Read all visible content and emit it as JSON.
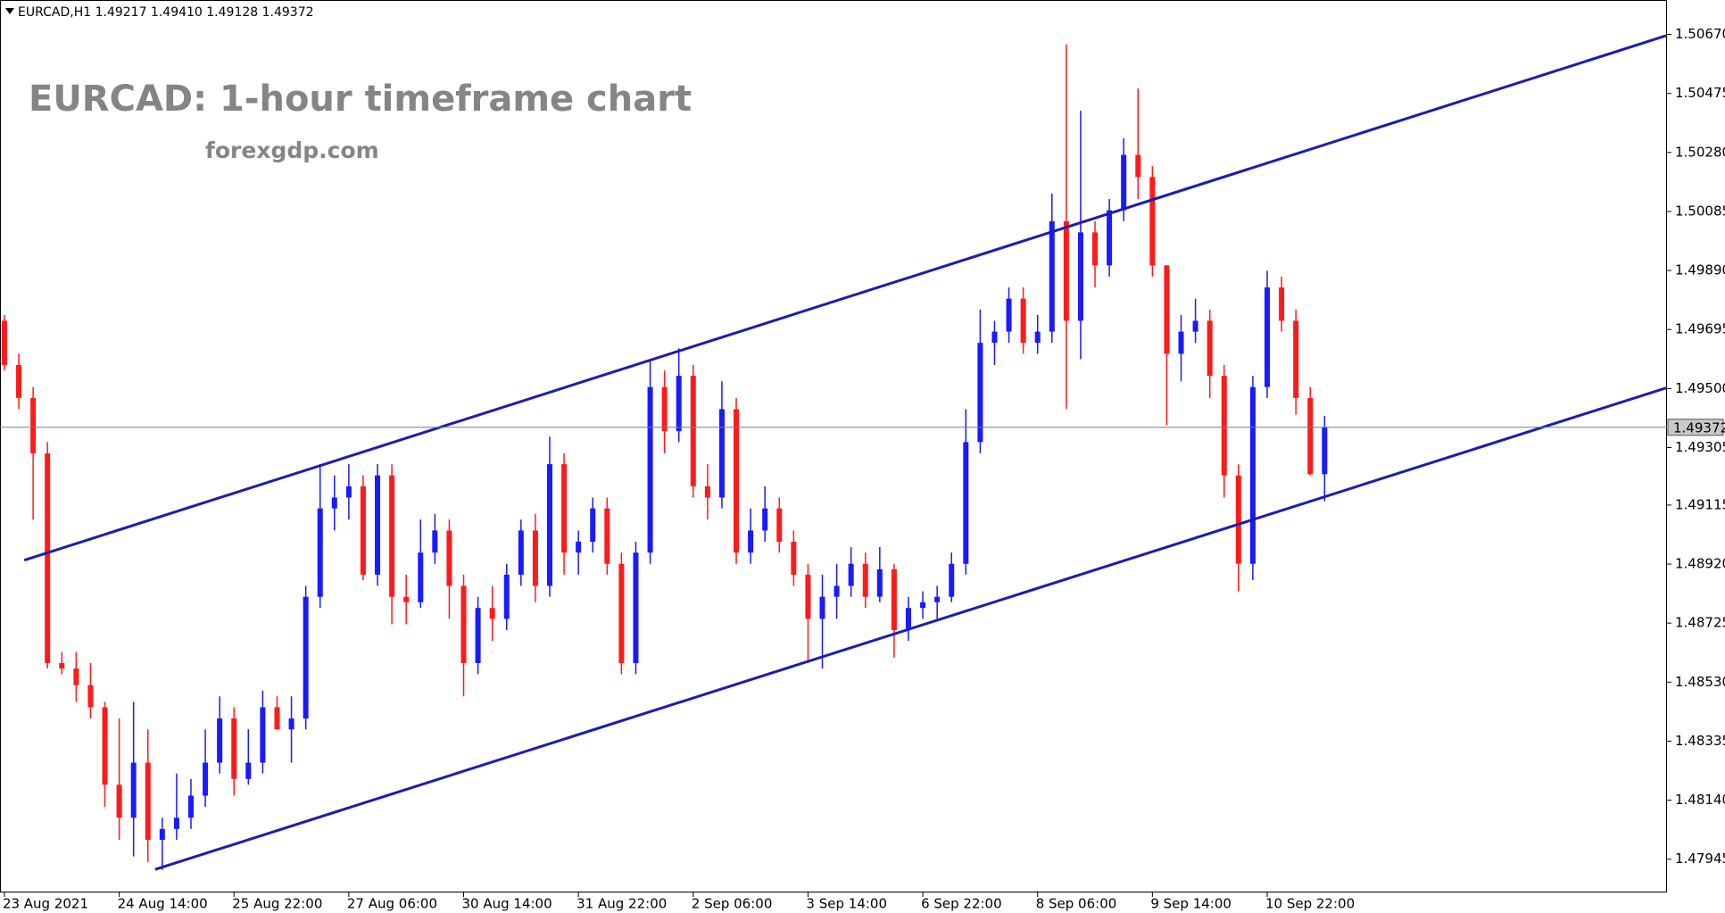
{
  "chart_data": {
    "type": "candlestick",
    "header": "EURCAD,H1 1.49217 1.49410 1.49128 1.49372",
    "title": "EURCAD: 1-hour timeframe chart",
    "subtitle": "forexgdp.com",
    "bull_color": "#1a1aff",
    "bear_color": "#ff1a1a",
    "trendline_color": "#1c1cb4",
    "grid": false,
    "ylim": [
      1.47835,
      1.50769
    ],
    "yticks": [
      {
        "value": 1.5067,
        "label": "1.50670"
      },
      1.50475,
      {
        "value": 1.5028,
        "label": "1.50280"
      },
      1.50085,
      {
        "value": 1.4989,
        "label": "1.49890"
      },
      1.49695,
      {
        "value": 1.495,
        "label": "1.49500"
      },
      1.49305,
      1.49115,
      {
        "value": 1.4892,
        "label": "1.48920"
      },
      1.48725,
      {
        "value": 1.4853,
        "label": "1.48530"
      },
      1.48335,
      {
        "value": 1.4814,
        "label": "1.48140"
      },
      1.47945
    ],
    "xticks": [
      {
        "value": 0,
        "label": "23 Aug 2021"
      },
      {
        "value": 8,
        "label": "24 Aug 14:00"
      },
      {
        "value": 16,
        "label": "25 Aug 22:00"
      },
      {
        "value": 24,
        "label": "27 Aug 06:00"
      },
      {
        "value": 32,
        "label": "30 Aug 14:00"
      },
      {
        "value": 40,
        "label": "31 Aug 22:00"
      },
      {
        "value": 48,
        "label": "2 Sep 06:00"
      },
      {
        "value": 56,
        "label": "3 Sep 14:00"
      },
      {
        "value": 64,
        "label": "6 Sep 22:00"
      },
      {
        "value": 72,
        "label": "8 Sep 06:00"
      },
      {
        "value": 80,
        "label": "9 Sep 14:00"
      },
      {
        "value": 88,
        "label": "10 Sep 22:00"
      }
    ],
    "last_price": {
      "value": 1.49372,
      "label": "1.49372"
    },
    "trendlines": [
      {
        "x": [
          1.38,
          115.8
        ],
        "y": [
          1.48933,
          1.50666
        ]
      },
      {
        "x": [
          10.5,
          115.8
        ],
        "y": [
          1.47911,
          1.49502
        ]
      }
    ],
    "candles": [
      [
        1.49724,
        1.49743,
        1.4956,
        1.49578
      ],
      [
        1.49578,
        1.49615,
        1.49432,
        1.49469
      ],
      [
        1.49469,
        1.49505,
        1.49067,
        1.49286
      ],
      [
        1.49286,
        1.49323,
        1.48575,
        1.48593
      ],
      [
        1.48593,
        1.48629,
        1.48556,
        1.48575
      ],
      [
        1.48575,
        1.48629,
        1.48465,
        1.4852
      ],
      [
        1.4852,
        1.48593,
        1.4841,
        1.48447
      ],
      [
        1.48447,
        1.48465,
        1.48118,
        1.48191
      ],
      [
        1.48191,
        1.4841,
        1.48009,
        1.48082
      ],
      [
        1.48082,
        1.48465,
        1.47954,
        1.48264
      ],
      [
        1.48264,
        1.48374,
        1.47936,
        1.48009
      ],
      [
        1.48009,
        1.48082,
        1.4791,
        1.48045
      ],
      [
        1.48045,
        1.48228,
        1.48009,
        1.48082
      ],
      [
        1.48082,
        1.4821,
        1.48045,
        1.48155
      ],
      [
        1.48155,
        1.48374,
        1.48118,
        1.48264
      ],
      [
        1.48264,
        1.48483,
        1.48228,
        1.4841
      ],
      [
        1.4841,
        1.48447,
        1.48155,
        1.4821
      ],
      [
        1.4821,
        1.48374,
        1.48191,
        1.48264
      ],
      [
        1.48264,
        1.48502,
        1.48228,
        1.48447
      ],
      [
        1.48447,
        1.48483,
        1.48374,
        1.48374
      ],
      [
        1.48374,
        1.48483,
        1.48264,
        1.4841
      ],
      [
        1.4841,
        1.48848,
        1.48374,
        1.48812
      ],
      [
        1.48812,
        1.4925,
        1.48775,
        1.49104
      ],
      [
        1.49104,
        1.49213,
        1.49031,
        1.4914
      ],
      [
        1.4914,
        1.4925,
        1.49067,
        1.49177
      ],
      [
        1.49177,
        1.49213,
        1.48867,
        1.48885
      ],
      [
        1.48885,
        1.4925,
        1.48848,
        1.49213
      ],
      [
        1.49213,
        1.4925,
        1.48721,
        1.48812
      ],
      [
        1.48812,
        1.48885,
        1.48721,
        1.48794
      ],
      [
        1.48794,
        1.49067,
        1.48775,
        1.48958
      ],
      [
        1.48958,
        1.49086,
        1.48921,
        1.49031
      ],
      [
        1.49031,
        1.49067,
        1.48739,
        1.48848
      ],
      [
        1.48848,
        1.48885,
        1.48483,
        1.48593
      ],
      [
        1.48593,
        1.48812,
        1.48556,
        1.48775
      ],
      [
        1.48775,
        1.48848,
        1.48666,
        1.48739
      ],
      [
        1.48739,
        1.48921,
        1.48702,
        1.48885
      ],
      [
        1.48885,
        1.49067,
        1.48848,
        1.49031
      ],
      [
        1.49031,
        1.49086,
        1.48794,
        1.48848
      ],
      [
        1.48848,
        1.49341,
        1.48812,
        1.4925
      ],
      [
        1.4925,
        1.49286,
        1.48885,
        1.48958
      ],
      [
        1.48958,
        1.49031,
        1.48885,
        1.48994
      ],
      [
        1.48994,
        1.4914,
        1.48958,
        1.49104
      ],
      [
        1.49104,
        1.4914,
        1.48885,
        1.48921
      ],
      [
        1.48921,
        1.48958,
        1.48556,
        1.48593
      ],
      [
        1.48593,
        1.48994,
        1.48556,
        1.48958
      ],
      [
        1.48958,
        1.49597,
        1.48921,
        1.49505
      ],
      [
        1.49505,
        1.4956,
        1.49286,
        1.49359
      ],
      [
        1.49359,
        1.49633,
        1.49323,
        1.49542
      ],
      [
        1.49542,
        1.49578,
        1.4914,
        1.49177
      ],
      [
        1.49177,
        1.4925,
        1.49067,
        1.4914
      ],
      [
        1.4914,
        1.49524,
        1.49104,
        1.49432
      ],
      [
        1.49432,
        1.49469,
        1.48921,
        1.48958
      ],
      [
        1.48958,
        1.49104,
        1.48921,
        1.49031
      ],
      [
        1.49031,
        1.49177,
        1.48994,
        1.49104
      ],
      [
        1.49104,
        1.4914,
        1.48958,
        1.48994
      ],
      [
        1.48994,
        1.49031,
        1.48848,
        1.48885
      ],
      [
        1.48885,
        1.48921,
        1.48593,
        1.48739
      ],
      [
        1.48739,
        1.48885,
        1.48575,
        1.48812
      ],
      [
        1.48812,
        1.48921,
        1.48739,
        1.48848
      ],
      [
        1.48848,
        1.48976,
        1.48812,
        1.48921
      ],
      [
        1.48921,
        1.48958,
        1.48775,
        1.48812
      ],
      [
        1.48812,
        1.48976,
        1.48794,
        1.48903
      ],
      [
        1.48903,
        1.48921,
        1.48611,
        1.48702
      ],
      [
        1.48702,
        1.48812,
        1.48666,
        1.48775
      ],
      [
        1.48775,
        1.4883,
        1.48739,
        1.48794
      ],
      [
        1.48794,
        1.48848,
        1.48739,
        1.48812
      ],
      [
        1.48812,
        1.48958,
        1.48794,
        1.48921
      ],
      [
        1.48921,
        1.49432,
        1.48885,
        1.49323
      ],
      [
        1.49323,
        1.49761,
        1.49286,
        1.49651
      ],
      [
        1.49651,
        1.49724,
        1.49578,
        1.49688
      ],
      [
        1.49688,
        1.49834,
        1.49651,
        1.49797
      ],
      [
        1.49797,
        1.49834,
        1.49615,
        1.49651
      ],
      [
        1.49651,
        1.49743,
        1.49615,
        1.49688
      ],
      [
        1.49688,
        1.50144,
        1.49651,
        1.50053
      ],
      [
        1.50053,
        1.50637,
        1.49432,
        1.49724
      ],
      [
        1.49724,
        1.50418,
        1.49597,
        1.50016
      ],
      [
        1.50016,
        1.50053,
        1.49834,
        1.49907
      ],
      [
        1.49907,
        1.50126,
        1.4987,
        1.50089
      ],
      [
        1.50089,
        1.50327,
        1.50053,
        1.50272
      ],
      [
        1.50272,
        1.50491,
        1.50126,
        1.50199
      ],
      [
        1.50199,
        1.50235,
        1.4987,
        1.49907
      ],
      [
        1.49907,
        1.49907,
        1.49378,
        1.49615
      ],
      [
        1.49615,
        1.49743,
        1.49524,
        1.49688
      ],
      [
        1.49688,
        1.49797,
        1.49651,
        1.49724
      ],
      [
        1.49724,
        1.49761,
        1.49469,
        1.49542
      ],
      [
        1.49542,
        1.49578,
        1.4914,
        1.49213
      ],
      [
        1.49213,
        1.4925,
        1.4883,
        1.48921
      ],
      [
        1.48921,
        1.49542,
        1.48867,
        1.49505
      ],
      [
        1.49505,
        1.49889,
        1.49469,
        1.49834
      ],
      [
        1.49834,
        1.4987,
        1.49688,
        1.49724
      ],
      [
        1.49724,
        1.49761,
        1.49414,
        1.49469
      ],
      [
        1.49469,
        1.49505,
        1.49213,
        1.49217
      ],
      [
        1.49217,
        1.4941,
        1.49128,
        1.49372
      ]
    ]
  }
}
